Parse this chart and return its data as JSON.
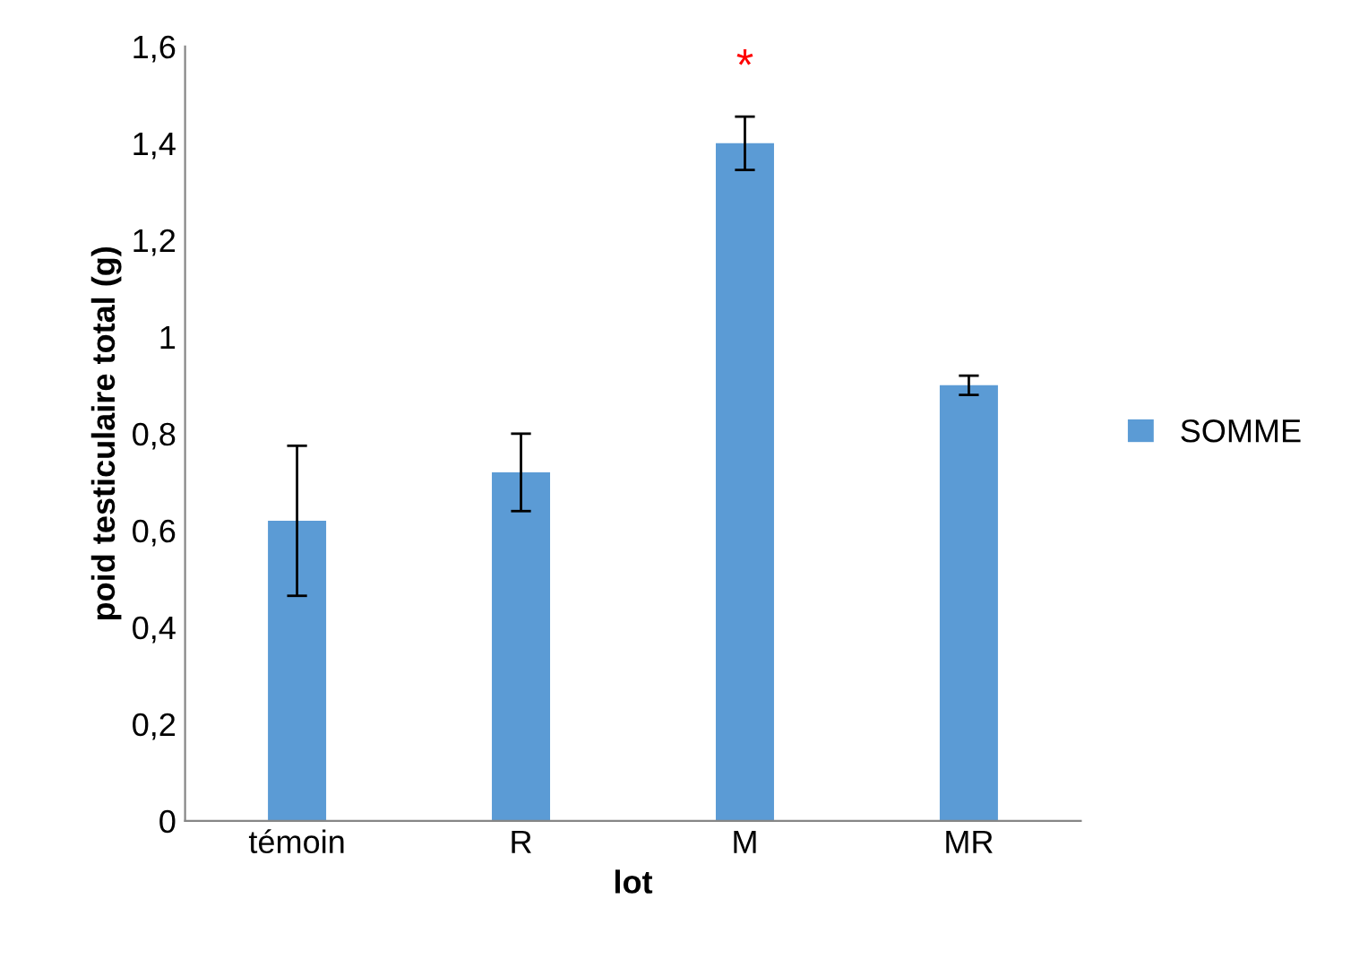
{
  "chart_data": {
    "type": "bar",
    "xlabel": "lot",
    "ylabel": "poid testiculaire total (g)",
    "categories": [
      "témoin",
      "R",
      "M",
      "MR"
    ],
    "series": [
      {
        "name": "SOMME",
        "color": "#5b9bd5",
        "values": [
          0.62,
          0.72,
          1.4,
          0.9
        ],
        "errors": [
          0.155,
          0.08,
          0.055,
          0.02
        ]
      }
    ],
    "ylim": [
      0,
      1.6
    ],
    "yticks": [
      {
        "value": 0,
        "label": "0"
      },
      {
        "value": 0.2,
        "label": "0,2"
      },
      {
        "value": 0.4,
        "label": "0,4"
      },
      {
        "value": 0.6,
        "label": "0,6"
      },
      {
        "value": 0.8,
        "label": "0,8"
      },
      {
        "value": 1,
        "label": "1"
      },
      {
        "value": 1.2,
        "label": "1,2"
      },
      {
        "value": 1.4,
        "label": "1,4"
      },
      {
        "value": 1.6,
        "label": "1,6"
      }
    ],
    "annotations": [
      "*"
    ],
    "grid": false,
    "legend": "right"
  }
}
